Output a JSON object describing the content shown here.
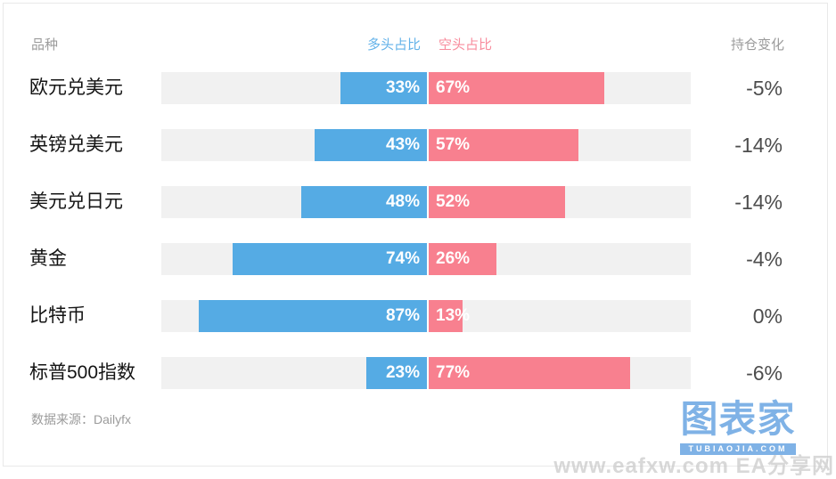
{
  "page": {
    "header": {
      "instrument_col": "品种",
      "long_col": "多头占比",
      "short_col": "空头占比",
      "change_col": "持仓变化"
    },
    "source": "数据来源：Dailyfx",
    "logo": {
      "title": "图表家",
      "subtitle": "TUBIAOJIA.COM"
    },
    "watermark": "www.eafxw.com  EA分享网"
  },
  "chart_data": {
    "type": "bar",
    "subtype": "diverging-stacked-horizontal",
    "title": "",
    "categories": [
      "欧元兑美元",
      "英镑兑美元",
      "美元兑日元",
      "黄金",
      "比特币",
      "标普500指数"
    ],
    "series": [
      {
        "name": "多头占比",
        "color": "#55ABE4",
        "values": [
          33,
          43,
          48,
          74,
          87,
          23
        ]
      },
      {
        "name": "空头占比",
        "color": "#F8808F",
        "values": [
          67,
          57,
          52,
          26,
          13,
          77
        ]
      }
    ],
    "change_column": {
      "label": "持仓变化",
      "values": [
        "-5%",
        "-14%",
        "-14%",
        "-4%",
        "0%",
        "-6%"
      ]
    },
    "value_suffix": "%",
    "axis": {
      "min": 0,
      "max": 100,
      "divider_fixed_at_center": true,
      "gridlines": false
    },
    "legend_position": "top-center",
    "source": "Dailyfx"
  },
  "colors": {
    "long_bar": "#55ABE4",
    "short_bar": "#F8808F",
    "long_header": "#63B2E9",
    "short_header": "#F88C9D",
    "track": "#F1F1F1",
    "muted_text": "#9B9B9B",
    "label_text": "#141414",
    "change_text": "#4D4D4D",
    "logo_blue": "#7FB2E6",
    "watermark": "#CBCBCB",
    "border": "#E9E9E9"
  }
}
